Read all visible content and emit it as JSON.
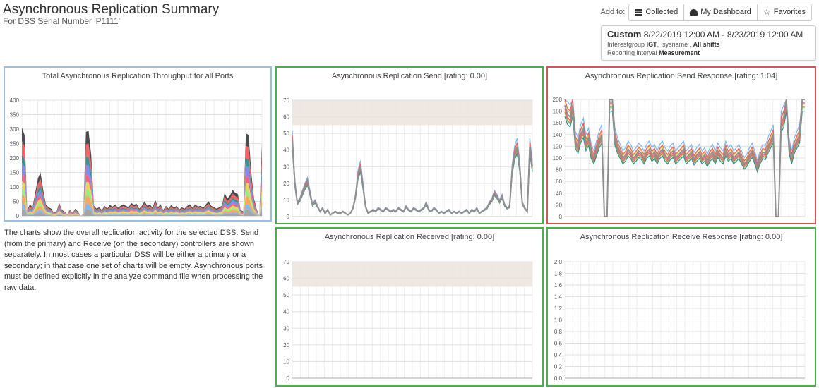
{
  "header": {
    "title": "Asynchronous Replication Summary",
    "subtitle": "For DSS Serial Number 'P1111'"
  },
  "addto": {
    "label": "Add to:",
    "buttons": [
      {
        "label": "Collected",
        "icon": "list-icon"
      },
      {
        "label": "My Dashboard",
        "icon": "dashboard-icon"
      },
      {
        "label": "Favorites",
        "icon": "star-icon"
      }
    ]
  },
  "range": {
    "mode": "Custom",
    "dates": "8/22/2019 12:00 AM - 8/23/2019 12:00 AM",
    "interest_prefix": "Interestgroup",
    "interest_group": "IGT",
    "sysname": "sysname",
    "shifts": "All shifts",
    "interval_prefix": "Reporting interval",
    "interval": "Measurement"
  },
  "description": "The charts show the overall replication activity for the selected DSS. Send (from the primary) and Receive (on the secondary) controllers are shown separately. In most cases a particular DSS will be either a primary or a secondary; in that case one set of charts will be empty. Asynchronous ports must be defined explicitly in the analyze command file when processing the raw data.",
  "colors": {
    "series": [
      "#7cb5ec",
      "#f7a35c",
      "#90ed7d",
      "#e4d354",
      "#f15c80",
      "#8085e9",
      "#2b908f",
      "#f45b5b",
      "#434348",
      "#a0a0a0"
    ],
    "threshold_band": "#ece3dc"
  },
  "chart_data": [
    {
      "id": "throughput",
      "type": "area",
      "title": "Total Asynchronous Replication Throughput for all Ports",
      "ylim": [
        0,
        400
      ],
      "yticks": [
        0,
        50,
        100,
        150,
        200,
        250,
        300,
        350,
        400
      ],
      "total": [
        305,
        280,
        20,
        40,
        30,
        80,
        130,
        150,
        90,
        40,
        30,
        25,
        10,
        15,
        45,
        20,
        15,
        5,
        22,
        10,
        25,
        15,
        0,
        5,
        290,
        295,
        210,
        35,
        25,
        30,
        20,
        35,
        25,
        38,
        32,
        40,
        28,
        35,
        40,
        35,
        30,
        45,
        38,
        42,
        25,
        35,
        50,
        35,
        40,
        28,
        55,
        30,
        40,
        20,
        35,
        25,
        38,
        28,
        35,
        22,
        30,
        25,
        35,
        40,
        28,
        40,
        32,
        35,
        28,
        40,
        50,
        35,
        30,
        25,
        30,
        35,
        80,
        60,
        70,
        90,
        80,
        75,
        20,
        15,
        285,
        280,
        150,
        60,
        25,
        0,
        250
      ],
      "series_count": 10
    },
    {
      "id": "send",
      "type": "line",
      "title": "Asynchronous Replication Send [rating: 0.00]",
      "ylim": [
        0,
        70
      ],
      "yticks": [
        0,
        10,
        20,
        30,
        40,
        50,
        60,
        70
      ],
      "threshold_band": [
        55,
        70
      ],
      "base": [
        46,
        20,
        8,
        10,
        14,
        18,
        21,
        14,
        7,
        9,
        6,
        3,
        5,
        2,
        4,
        1,
        2,
        3,
        2,
        2,
        3,
        2,
        1,
        2,
        5,
        12,
        25,
        30,
        18,
        6,
        2,
        3,
        4,
        3,
        5,
        4,
        3,
        5,
        4,
        3,
        4,
        3,
        5,
        4,
        3,
        6,
        4,
        3,
        5,
        4,
        3,
        4,
        5,
        8,
        4,
        3,
        5,
        4,
        2,
        3,
        2,
        3,
        4,
        2,
        3,
        2,
        3,
        2,
        3,
        4,
        2,
        4,
        3,
        5,
        2,
        3,
        4,
        5,
        8,
        10,
        14,
        12,
        9,
        12,
        7,
        5,
        6,
        28,
        38,
        42,
        30,
        8,
        5,
        3,
        42,
        30
      ],
      "series_count": 10
    },
    {
      "id": "send_response",
      "type": "line",
      "title": "Asynchronous Replication Send Response [rating: 1.04]",
      "ylim": [
        0,
        200
      ],
      "yticks": [
        0,
        20,
        40,
        60,
        80,
        100,
        120,
        140,
        160,
        180,
        200
      ],
      "base": [
        190,
        175,
        170,
        190,
        130,
        120,
        140,
        150,
        125,
        135,
        110,
        100,
        115,
        130,
        140,
        0,
        0,
        200,
        200,
        135,
        120,
        110,
        100,
        105,
        115,
        110,
        100,
        105,
        112,
        108,
        100,
        110,
        115,
        105,
        110,
        100,
        110,
        115,
        105,
        100,
        108,
        112,
        100,
        105,
        110,
        115,
        100,
        105,
        110,
        98,
        105,
        110,
        100,
        105,
        95,
        105,
        110,
        100,
        112,
        105,
        100,
        115,
        105,
        110,
        100,
        105,
        110,
        100,
        90,
        95,
        105,
        112,
        100,
        85,
        100,
        110,
        108,
        120,
        130,
        140,
        0,
        0,
        160,
        170,
        200,
        120,
        100,
        120,
        130,
        140,
        200,
        200
      ],
      "series_count": 10
    },
    {
      "id": "received",
      "type": "line",
      "title": "Asynchronous Replication Received [rating: 0.00]",
      "ylim": [
        0,
        70
      ],
      "yticks": [
        0,
        10,
        20,
        30,
        40,
        50,
        60,
        70
      ],
      "threshold_band": [
        55,
        70
      ],
      "base": [
        0,
        0
      ],
      "series_count": 1
    },
    {
      "id": "receive_response",
      "type": "line",
      "title": "Asynchronous Replication Receive Response [rating: 0.00]",
      "ylim": [
        0,
        2
      ],
      "yticks": [
        "0.0",
        "0.2",
        "0.4",
        "0.6",
        "0.8",
        "1.0",
        "1.2",
        "1.4",
        "1.6",
        "1.8",
        "2.0"
      ],
      "base": [
        0,
        0
      ],
      "series_count": 1
    }
  ]
}
